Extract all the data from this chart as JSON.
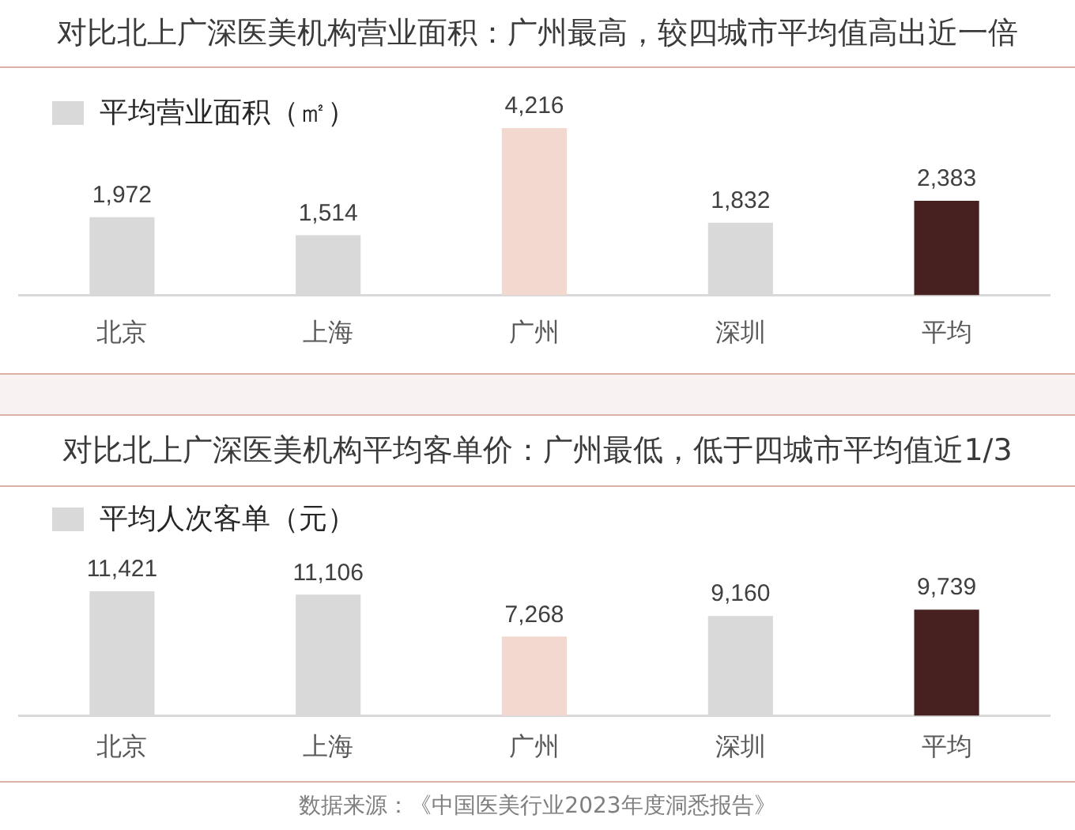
{
  "chart_data": [
    {
      "type": "bar",
      "title": "对比北上广深医美机构营业面积：广州最高，较四城市平均值高出近一倍",
      "categories": [
        "北京",
        "上海",
        "广州",
        "深圳",
        "平均"
      ],
      "series": [
        {
          "name": "平均营业面积（㎡）",
          "color": "#d9d9d9",
          "colors": [
            "#d9d9d9",
            "#d9d9d9",
            "#f2d8cf",
            "#d9d9d9",
            "#472020"
          ],
          "values": [
            1972,
            1514,
            4216,
            1832,
            2383
          ],
          "value_labels": [
            "1,972",
            "1,514",
            "4,216",
            "1,832",
            "2,383"
          ]
        }
      ],
      "legend": "top left",
      "grid": false,
      "tick_labels": "x"
    },
    {
      "type": "bar",
      "title": "对比北上广深医美机构平均客单价：广州最低，低于四城市平均值近1/3",
      "categories": [
        "北京",
        "上海",
        "广州",
        "深圳",
        "平均"
      ],
      "series": [
        {
          "name": "平均人次客单（元）",
          "color": "#d9d9d9",
          "colors": [
            "#d9d9d9",
            "#d9d9d9",
            "#f2d8cf",
            "#d9d9d9",
            "#472020"
          ],
          "values": [
            11421,
            11106,
            7268,
            9160,
            9739
          ],
          "value_labels": [
            "11,421",
            "11,106",
            "7,268",
            "9,160",
            "9,739"
          ]
        }
      ],
      "legend": "top left",
      "grid": false,
      "tick_labels": "x",
      "annotations": [
        "数据来源：《中国医美行业2023年度洞悉报告》"
      ]
    }
  ]
}
